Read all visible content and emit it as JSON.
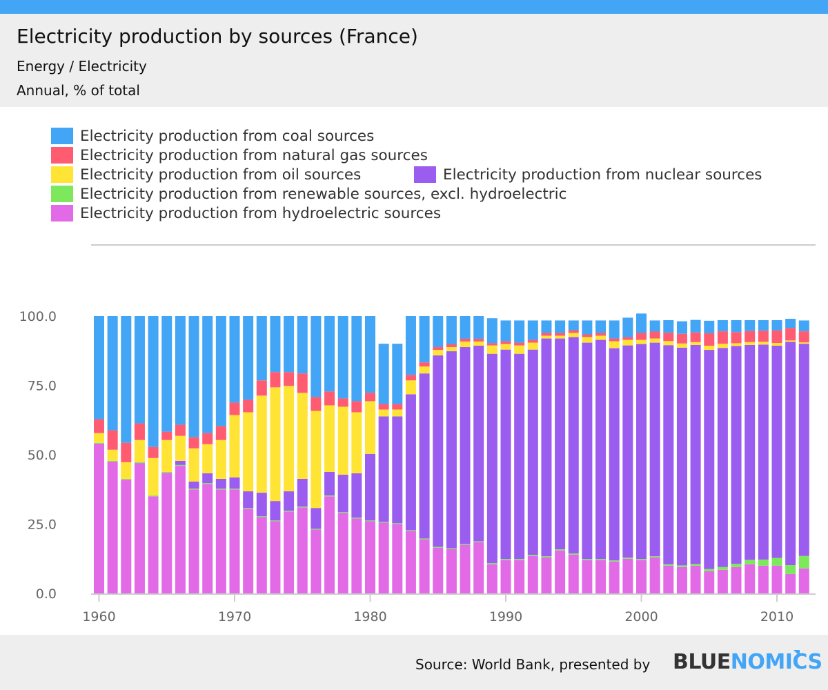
{
  "header": {
    "title": "Electricity production by sources (France)",
    "subtitle": "Energy / Electricity",
    "unit": "Annual, % of total"
  },
  "footer": {
    "source": "Source: World Bank, presented by",
    "logo_part1": "BLUE",
    "logo_part2": "NOMICS"
  },
  "colors": {
    "coal": "#42a5f5",
    "natural_gas": "#ff5c72",
    "oil": "#ffe436",
    "nuclear": "#9b5cf0",
    "renewable": "#7de85c",
    "hydro": "#e36ae6",
    "accent": "#42a5f5"
  },
  "chart_data": {
    "type": "bar",
    "stacked": true,
    "ylim": [
      0,
      100
    ],
    "yticks": [
      0,
      25,
      50,
      75,
      100
    ],
    "ytick_labels": [
      "0.0",
      "25.0",
      "50.0",
      "75.0",
      "100.0"
    ],
    "xticks": [
      1960,
      1970,
      1980,
      1990,
      2000,
      2010
    ],
    "x": [
      1960,
      1961,
      1962,
      1963,
      1964,
      1965,
      1966,
      1967,
      1968,
      1969,
      1970,
      1971,
      1972,
      1973,
      1974,
      1975,
      1976,
      1977,
      1978,
      1979,
      1980,
      1981,
      1982,
      1983,
      1984,
      1985,
      1986,
      1987,
      1988,
      1989,
      1990,
      1991,
      1992,
      1993,
      1994,
      1995,
      1996,
      1997,
      1998,
      1999,
      2000,
      2001,
      2002,
      2003,
      2004,
      2005,
      2006,
      2007,
      2008,
      2009,
      2010,
      2011,
      2012
    ],
    "legend_position": "top",
    "series": [
      {
        "key": "hydro",
        "name": "Electricity production from hydroelectric sources",
        "values": [
          54.0,
          47.5,
          41.0,
          47.0,
          35.0,
          43.5,
          46.0,
          37.5,
          39.5,
          37.5,
          37.5,
          30.5,
          27.5,
          26.0,
          29.5,
          31.0,
          23.0,
          35.0,
          29.0,
          27.0,
          26.0,
          25.5,
          25.0,
          22.5,
          19.5,
          16.5,
          16.0,
          17.5,
          18.5,
          10.5,
          12.0,
          12.0,
          13.5,
          13.0,
          15.5,
          14.0,
          12.0,
          12.0,
          11.5,
          12.5,
          12.0,
          13.0,
          10.0,
          9.5,
          10.0,
          8.0,
          8.5,
          9.5,
          10.5,
          10.0,
          10.0,
          7.0,
          9.0
        ]
      },
      {
        "key": "renewable",
        "name": "Electricity production from renewable sources, excl. hydroelectric",
        "values": [
          0.3,
          0.3,
          0.3,
          0.3,
          0.3,
          0.3,
          0.3,
          0.3,
          0.3,
          0.3,
          0.3,
          0.3,
          0.3,
          0.3,
          0.3,
          0.3,
          0.3,
          0.3,
          0.3,
          0.3,
          0.3,
          0.3,
          0.3,
          0.3,
          0.3,
          0.3,
          0.3,
          0.3,
          0.3,
          0.4,
          0.4,
          0.4,
          0.4,
          0.4,
          0.4,
          0.4,
          0.4,
          0.4,
          0.4,
          0.4,
          0.4,
          0.4,
          0.5,
          0.6,
          0.6,
          0.8,
          1.0,
          1.2,
          1.6,
          2.2,
          2.8,
          3.2,
          4.5
        ]
      },
      {
        "key": "nuclear",
        "name": "Electricity production from nuclear sources",
        "values": [
          0.0,
          0.0,
          0.0,
          0.0,
          0.0,
          0.0,
          1.5,
          2.5,
          3.5,
          3.5,
          4.0,
          6.0,
          8.5,
          7.0,
          7.0,
          10.0,
          7.5,
          8.5,
          13.5,
          16.0,
          24.0,
          38.0,
          38.5,
          49.0,
          59.5,
          69.0,
          71.0,
          71.0,
          70.5,
          75.5,
          75.5,
          74.0,
          74.0,
          78.5,
          76.0,
          78.0,
          78.0,
          79.0,
          76.5,
          76.5,
          77.5,
          77.0,
          79.0,
          78.5,
          79.0,
          79.0,
          79.0,
          78.5,
          77.5,
          77.5,
          76.5,
          80.5,
          76.5
        ]
      },
      {
        "key": "oil",
        "name": "Electricity production from oil sources",
        "values": [
          3.5,
          4.0,
          6.0,
          8.0,
          13.5,
          11.5,
          9.0,
          12.0,
          10.5,
          14.0,
          22.5,
          28.5,
          35.0,
          41.0,
          38.0,
          31.0,
          35.0,
          24.0,
          24.5,
          22.0,
          19.0,
          2.5,
          2.5,
          5.0,
          2.5,
          2.0,
          1.5,
          2.0,
          1.5,
          3.0,
          2.0,
          3.0,
          2.5,
          1.0,
          1.0,
          1.5,
          2.0,
          1.5,
          2.5,
          2.0,
          1.5,
          1.5,
          1.5,
          1.5,
          1.0,
          1.5,
          1.5,
          1.0,
          1.0,
          1.0,
          1.0,
          0.5,
          0.5
        ]
      },
      {
        "key": "natural_gas",
        "name": "Electricity production from natural gas sources",
        "values": [
          5.0,
          7.0,
          7.0,
          6.0,
          4.0,
          3.0,
          4.0,
          4.0,
          4.0,
          5.0,
          4.5,
          4.5,
          5.5,
          5.5,
          5.0,
          7.0,
          5.0,
          5.0,
          3.0,
          4.0,
          3.0,
          2.0,
          2.0,
          2.0,
          1.5,
          1.0,
          1.0,
          1.0,
          1.0,
          0.8,
          1.0,
          1.0,
          1.0,
          1.0,
          1.0,
          1.0,
          1.0,
          1.0,
          1.0,
          1.0,
          2.5,
          2.5,
          3.0,
          3.5,
          3.5,
          4.5,
          4.5,
          4.0,
          4.0,
          4.0,
          4.5,
          4.5,
          4.0
        ]
      },
      {
        "key": "coal",
        "name": "Electricity production from coal sources",
        "values": [
          37.2,
          41.2,
          45.7,
          38.7,
          47.2,
          41.7,
          39.2,
          43.7,
          42.2,
          39.7,
          31.2,
          30.2,
          23.2,
          20.2,
          20.2,
          20.7,
          29.2,
          27.2,
          29.7,
          30.7,
          27.7,
          21.7,
          21.7,
          21.2,
          16.7,
          11.2,
          10.2,
          8.2,
          8.2,
          9.0,
          7.5,
          8.0,
          7.0,
          4.5,
          4.5,
          3.5,
          5.0,
          4.5,
          6.5,
          7.0,
          7.0,
          4.0,
          4.5,
          4.5,
          4.5,
          4.5,
          4.0,
          4.3,
          3.9,
          3.8,
          3.7,
          3.3,
          3.9
        ]
      }
    ]
  }
}
